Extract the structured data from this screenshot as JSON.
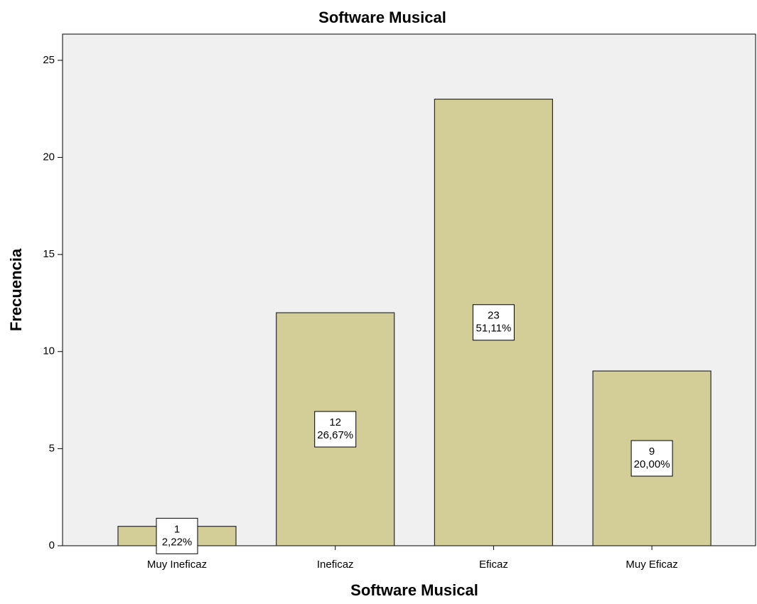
{
  "chart_data": {
    "type": "bar",
    "title": "Software Musical",
    "x_label": "Software Musical",
    "y_label": "Frecuencia",
    "categories": [
      "Muy Ineficaz",
      "Ineficaz",
      "Eficaz",
      "Muy Eficaz"
    ],
    "values": [
      1,
      12,
      23,
      9
    ],
    "percentages": [
      2.22,
      26.67,
      51.11,
      20.0
    ],
    "percentage_labels": [
      "2,22%",
      "26,67%",
      "51,11%",
      "20,00%"
    ],
    "color": "#d3ce97",
    "ylim": [
      0,
      26.35
    ],
    "yticks": [
      0,
      5,
      10,
      15,
      20,
      25
    ]
  }
}
